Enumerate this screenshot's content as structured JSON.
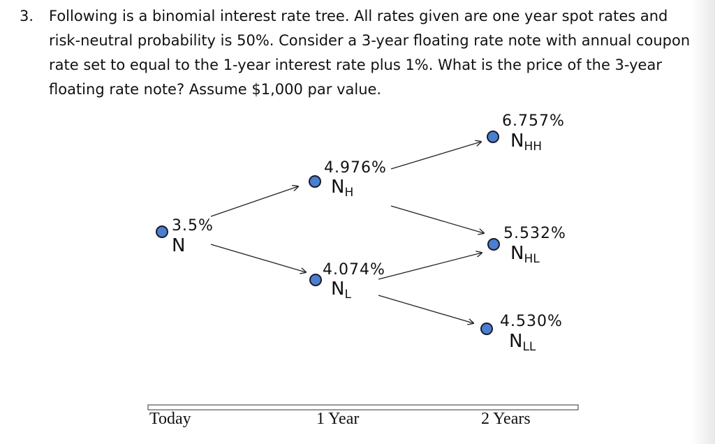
{
  "question": {
    "number": "3.",
    "text": "Following is a binomial interest rate tree. All rates given are one year spot rates and risk-neutral probability is 50%. Consider a 3-year floating rate note with annual coupon rate set to equal to the 1-year interest rate plus 1%. What is the price of the 3-year floating rate note? Assume $1,000 par value."
  },
  "tree": {
    "nodes": {
      "root": {
        "rate": "3.5%",
        "label": "N",
        "sub": ""
      },
      "h": {
        "rate": "4.976%",
        "label": "N",
        "sub": "H"
      },
      "l": {
        "rate": "4.074%",
        "label": "N",
        "sub": "L"
      },
      "hh": {
        "rate": "6.757%",
        "label": "N",
        "sub": "HH"
      },
      "hl": {
        "rate": "5.532%",
        "label": "N",
        "sub": "HL"
      },
      "ll": {
        "rate": "4.530%",
        "label": "N",
        "sub": "LL"
      }
    },
    "timeline": [
      "Today",
      "1 Year",
      "2 Years"
    ],
    "node_color": "#4a7fcf"
  }
}
